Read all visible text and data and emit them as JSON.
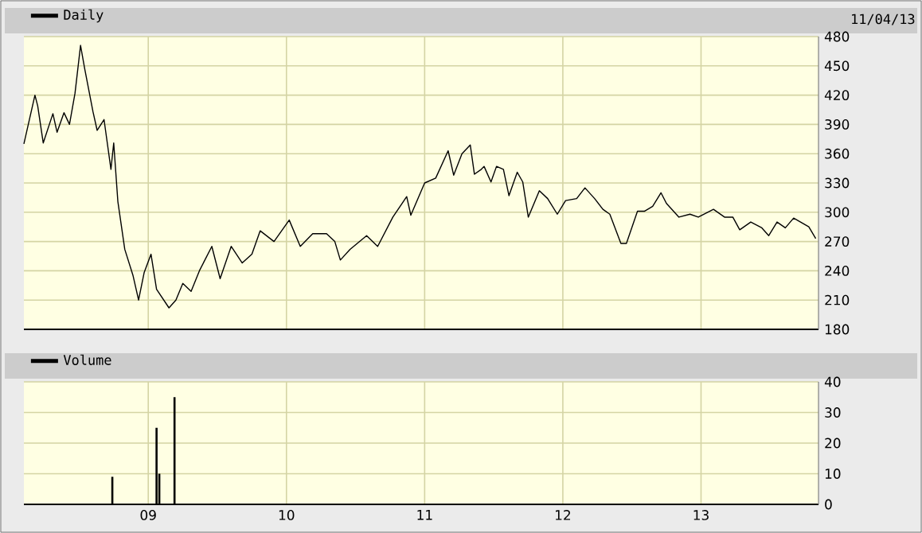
{
  "chart_data": [
    {
      "type": "line",
      "annotations": [
        "11/04/13"
      ],
      "legend": "top left",
      "grid": true,
      "tick_labels": "y",
      "xlim": [
        2008.1,
        2013.85
      ],
      "ylim": [
        180,
        480
      ],
      "yticks": [
        180,
        210,
        240,
        270,
        300,
        330,
        360,
        390,
        420,
        450,
        480
      ],
      "xticks": [
        {
          "value": 2009,
          "label": null
        },
        {
          "value": 2010,
          "label": null
        },
        {
          "value": 2011,
          "label": null
        },
        {
          "value": 2012,
          "label": null
        },
        {
          "value": 2013,
          "label": null
        }
      ],
      "series": [
        {
          "name": "Daily",
          "color": "#000000",
          "x": [
            2008.1,
            2008.18,
            2008.2,
            2008.24,
            2008.31,
            2008.34,
            2008.39,
            2008.43,
            2008.47,
            2008.51,
            2008.54,
            2008.6,
            2008.63,
            2008.68,
            2008.73,
            2008.75,
            2008.78,
            2008.83,
            2008.89,
            2008.93,
            2008.97,
            2009.02,
            2009.06,
            2009.15,
            2009.2,
            2009.25,
            2009.31,
            2009.37,
            2009.46,
            2009.52,
            2009.6,
            2009.68,
            2009.75,
            2009.81,
            2009.91,
            2010.02,
            2010.1,
            2010.19,
            2010.29,
            2010.35,
            2010.39,
            2010.46,
            2010.58,
            2010.66,
            2010.77,
            2010.87,
            2010.9,
            2011.0,
            2011.08,
            2011.17,
            2011.21,
            2011.27,
            2011.33,
            2011.36,
            2011.41,
            2011.43,
            2011.48,
            2011.52,
            2011.57,
            2011.61,
            2011.67,
            2011.71,
            2011.75,
            2011.83,
            2011.89,
            2011.96,
            2012.02,
            2012.1,
            2012.16,
            2012.23,
            2012.29,
            2012.34,
            2012.42,
            2012.46,
            2012.54,
            2012.59,
            2012.65,
            2012.71,
            2012.75,
            2012.84,
            2012.92,
            2012.98,
            2013.09,
            2013.17,
            2013.23,
            2013.28,
            2013.36,
            2013.44,
            2013.49,
            2013.55,
            2013.61,
            2013.67,
            2013.72,
            2013.78,
            2013.83
          ],
          "values": [
            370,
            420,
            409,
            371,
            401,
            382,
            402,
            390,
            422,
            471,
            447,
            403,
            384,
            395,
            344,
            371,
            311,
            262,
            235,
            210,
            238,
            257,
            221,
            202,
            210,
            227,
            219,
            240,
            265,
            232,
            265,
            248,
            257,
            281,
            270,
            292,
            265,
            278,
            278,
            270,
            251,
            262,
            276,
            265,
            295,
            316,
            297,
            330,
            335,
            363,
            338,
            360,
            369,
            339,
            344,
            347,
            331,
            347,
            344,
            317,
            341,
            331,
            295,
            322,
            314,
            298,
            312,
            314,
            325,
            314,
            303,
            298,
            268,
            268,
            301,
            301,
            306,
            320,
            309,
            295,
            298,
            295,
            303,
            295,
            295,
            282,
            290,
            284,
            276,
            290,
            284,
            294,
            290,
            285,
            273
          ]
        }
      ]
    },
    {
      "type": "bar",
      "legend": "top left",
      "grid": true,
      "xlim": [
        2008.1,
        2013.85
      ],
      "ylim": [
        0,
        40
      ],
      "yticks": [
        0,
        10,
        20,
        30,
        40
      ],
      "xticks": [
        {
          "value": 2009,
          "label": "09"
        },
        {
          "value": 2010,
          "label": "10"
        },
        {
          "value": 2011,
          "label": "11"
        },
        {
          "value": 2012,
          "label": "12"
        },
        {
          "value": 2013,
          "label": "13"
        }
      ],
      "series": [
        {
          "name": "Volume",
          "color": "#000000",
          "x": [
            2008.74,
            2009.06,
            2009.08,
            2009.19
          ],
          "values": [
            9,
            25,
            10,
            35
          ]
        }
      ]
    }
  ]
}
